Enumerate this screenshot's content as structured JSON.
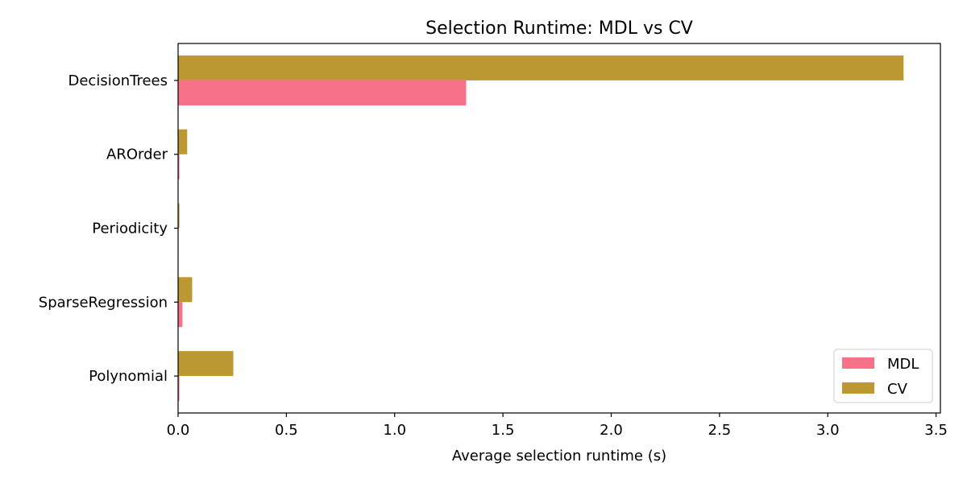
{
  "chart_data": {
    "type": "bar",
    "orientation": "horizontal",
    "title": "Selection Runtime: MDL vs CV",
    "xlabel": "Average selection runtime (s)",
    "ylabel": "",
    "categories": [
      "DecisionTrees",
      "AROrder",
      "Periodicity",
      "SparseRegression",
      "Polynomial"
    ],
    "series": [
      {
        "name": "MDL",
        "color": "#f77189",
        "values": [
          1.33,
          0.006,
          0.002,
          0.02,
          0.006
        ]
      },
      {
        "name": "CV",
        "color": "#bb9832",
        "values": [
          3.35,
          0.042,
          0.006,
          0.065,
          0.255
        ]
      }
    ],
    "xlim": [
      0,
      3.52
    ],
    "xticks": [
      0.0,
      0.5,
      1.0,
      1.5,
      2.0,
      2.5,
      3.0,
      3.5
    ],
    "xtick_labels": [
      "0.0",
      "0.5",
      "1.0",
      "1.5",
      "2.0",
      "2.5",
      "3.0",
      "3.5"
    ],
    "grid": false,
    "legend": {
      "position": "bottom-right",
      "entries": [
        "MDL",
        "CV"
      ]
    }
  }
}
